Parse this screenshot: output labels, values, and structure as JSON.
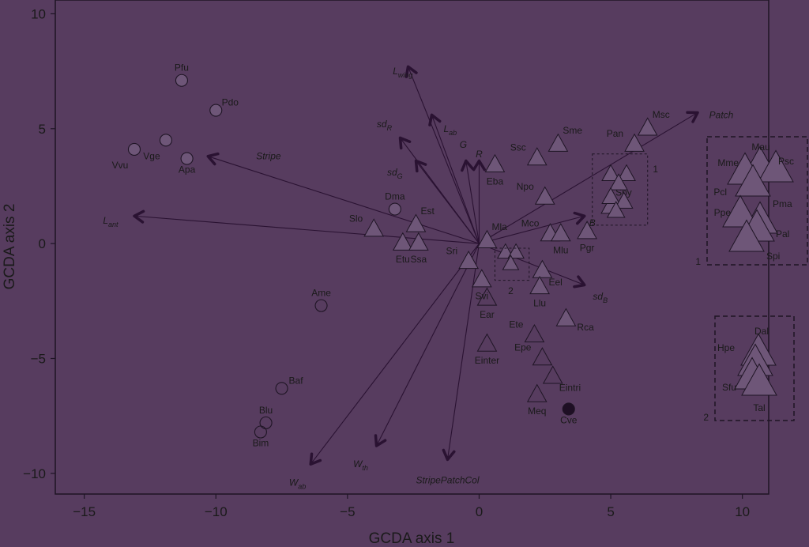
{
  "chart_data": {
    "type": "scatter",
    "xlabel": "GCDA axis 1",
    "ylabel": "GCDA axis 2",
    "xlim": [
      -16.1,
      11.0
    ],
    "ylim": [
      -10.9,
      10.6
    ],
    "xticks": [
      -15,
      -10,
      -5,
      0,
      5,
      10
    ],
    "yticks": [
      -10,
      -5,
      0,
      5,
      10
    ],
    "colors": {
      "background": "#573c5f",
      "marker_fill": "#6e5678",
      "marker_stroke": "#1e1424",
      "vector": "#2a1232",
      "text": "#1a1a1a"
    },
    "circles": [
      {
        "label": "Pfu",
        "x": -11.3,
        "y": 7.1,
        "filled": true
      },
      {
        "label": "Pdo",
        "x": -10.0,
        "y": 5.8,
        "filled": true
      },
      {
        "label": "Vge",
        "x": -11.9,
        "y": 4.5,
        "filled": true
      },
      {
        "label": "Vvu",
        "x": -13.1,
        "y": 4.1,
        "filled": true
      },
      {
        "label": "Apa",
        "x": -11.1,
        "y": 3.7,
        "filled": true
      },
      {
        "label": "Dma",
        "x": -3.2,
        "y": 1.5,
        "filled": true
      },
      {
        "label": "Ame",
        "x": -6.0,
        "y": -2.7,
        "filled": false
      },
      {
        "label": "Baf",
        "x": -7.5,
        "y": -6.3,
        "filled": false
      },
      {
        "label": "Blu",
        "x": -8.1,
        "y": -7.8,
        "filled": false
      },
      {
        "label": "Bim",
        "x": -8.3,
        "y": -8.2,
        "filled": false
      },
      {
        "label": "Cve",
        "x": 3.4,
        "y": -7.2,
        "filled": true,
        "dark": true
      }
    ],
    "triangles": [
      {
        "label": "Msc",
        "x": 6.4,
        "y": 5.0,
        "filled": true
      },
      {
        "label": "Sme",
        "x": 3.0,
        "y": 4.3,
        "filled": true
      },
      {
        "label": "Ssc",
        "x": 2.2,
        "y": 3.7,
        "filled": true
      },
      {
        "label": "Pan",
        "x": 5.9,
        "y": 4.3,
        "filled": true
      },
      {
        "label": "Eba",
        "x": 0.6,
        "y": 3.4,
        "filled": true
      },
      {
        "label": "Npo",
        "x": 2.5,
        "y": 2.0,
        "filled": true
      },
      {
        "label": "Spy",
        "x": 5.0,
        "y": 1.6,
        "filled": true
      },
      {
        "label": "Est",
        "x": -2.4,
        "y": 0.8,
        "filled": true
      },
      {
        "label": "Slo",
        "x": -4.0,
        "y": 0.6,
        "filled": true
      },
      {
        "label": "Etu",
        "x": -2.9,
        "y": 0.0,
        "filled": true
      },
      {
        "label": "Ssa",
        "x": -2.3,
        "y": 0.0,
        "filled": true
      },
      {
        "label": "Mla",
        "x": 0.3,
        "y": 0.1,
        "filled": true
      },
      {
        "label": "Mco",
        "x": 2.7,
        "y": 0.4,
        "filled": true
      },
      {
        "label": "Mlu",
        "x": 3.1,
        "y": 0.4,
        "filled": true
      },
      {
        "label": "Pgr",
        "x": 4.1,
        "y": 0.5,
        "filled": true
      },
      {
        "label": "Sri",
        "x": -0.4,
        "y": -0.8,
        "filled": true
      },
      {
        "label": "Eel",
        "x": 2.4,
        "y": -1.2,
        "filled": true
      },
      {
        "label": "Svi",
        "x": 0.1,
        "y": -1.6,
        "filled": true
      },
      {
        "label": "Llu",
        "x": 2.3,
        "y": -1.9,
        "filled": true
      },
      {
        "label": "Ear",
        "x": 0.3,
        "y": -2.4,
        "filled": false
      },
      {
        "label": "Rca",
        "x": 3.3,
        "y": -3.3,
        "filled": true
      },
      {
        "label": "Ete",
        "x": 2.1,
        "y": -4.0,
        "filled": false
      },
      {
        "label": "Einter",
        "x": 0.3,
        "y": -4.4,
        "filled": false
      },
      {
        "label": "Epe",
        "x": 2.4,
        "y": -5.0,
        "filled": false
      },
      {
        "label": "Eintri",
        "x": 2.8,
        "y": -5.8,
        "filled": false
      },
      {
        "label": "Meq",
        "x": 2.2,
        "y": -6.6,
        "filled": false
      }
    ],
    "cluster_small_1": [
      {
        "x": 5.0,
        "y": 3.0
      },
      {
        "x": 5.6,
        "y": 3.0
      },
      {
        "x": 5.3,
        "y": 2.6
      },
      {
        "x": 5.0,
        "y": 2.0
      },
      {
        "x": 5.5,
        "y": 1.8
      },
      {
        "x": 5.2,
        "y": 1.4
      }
    ],
    "cluster_small_2": [
      {
        "x": 1.0,
        "y": -0.4
      },
      {
        "x": 1.4,
        "y": -0.4
      },
      {
        "x": 1.2,
        "y": -0.9
      }
    ],
    "vectors": [
      {
        "label": "L",
        "sub": "wing",
        "x": -2.7,
        "y": 7.7,
        "ox": -2.9,
        "oy": 7.5
      },
      {
        "label": "L",
        "sub": "ab",
        "x": -1.8,
        "y": 5.6,
        "ox": -1.1,
        "oy": 5.0
      },
      {
        "label": "sd",
        "sub": "R",
        "x": -3.0,
        "y": 4.6,
        "ox": -3.6,
        "oy": 5.2
      },
      {
        "label": "sd",
        "sub": "G",
        "x": -2.4,
        "y": 3.6,
        "ox": -3.2,
        "oy": 3.1
      },
      {
        "label": "G",
        "sub": "",
        "x": -0.5,
        "y": 3.6,
        "ox": -0.6,
        "oy": 4.3
      },
      {
        "label": "R",
        "sub": "",
        "x": 0.0,
        "y": 3.6,
        "ox": 0.0,
        "oy": 3.9
      },
      {
        "label": "Stripe",
        "sub": "",
        "x": -10.3,
        "y": 3.8,
        "ox": -8.0,
        "oy": 3.8
      },
      {
        "label": "L",
        "sub": "ant",
        "x": -13.1,
        "y": 1.2,
        "ox": -14.0,
        "oy": 1.0
      },
      {
        "label": "Patch",
        "sub": "",
        "x": 8.3,
        "y": 5.7,
        "ox": 9.2,
        "oy": 5.6
      },
      {
        "label": "B",
        "sub": "",
        "x": 4.0,
        "y": 1.2,
        "ox": 4.3,
        "oy": 0.9
      },
      {
        "label": "sd",
        "sub": "B",
        "x": 4.0,
        "y": -1.8,
        "ox": 4.6,
        "oy": -2.3
      },
      {
        "label": "W",
        "sub": "ab",
        "x": -6.4,
        "y": -9.6,
        "ox": -6.9,
        "oy": -10.4
      },
      {
        "label": "W",
        "sub": "th",
        "x": -3.9,
        "y": -8.8,
        "ox": -4.5,
        "oy": -9.6
      },
      {
        "label": "StripePatchCol",
        "sub": "",
        "x": -1.2,
        "y": -9.4,
        "ox": -1.2,
        "oy": -10.3
      }
    ],
    "inset_1": {
      "label": "1",
      "triangles": [
        {
          "label": "Mau",
          "x": 10.7,
          "y": 3.5
        },
        {
          "label": "Mme",
          "x": 10.1,
          "y": 3.0
        },
        {
          "label": "Psc",
          "x": 11.2,
          "y": 3.1
        },
        {
          "label": "Pcl",
          "x": 10.5,
          "y": 2.5
        },
        {
          "label": "Pma",
          "x": 10.6,
          "y": 1.7
        },
        {
          "label": "Ppe",
          "x": 10.0,
          "y": 1.3
        },
        {
          "label": "Pal",
          "x": 10.7,
          "y": 1.1
        },
        {
          "label": "Spi",
          "x": 10.2,
          "y": 0.3
        }
      ]
    },
    "inset_2": {
      "label": "2",
      "triangles": [
        {
          "label": "Dal",
          "x": 10.6,
          "y": -4.6
        },
        {
          "label": "Hpe",
          "x": 10.2,
          "y": -5.0
        },
        {
          "label": "Sfu",
          "x": 10.4,
          "y": -5.8
        },
        {
          "label": "Tal",
          "x": 10.9,
          "y": -6.1
        }
      ]
    }
  }
}
